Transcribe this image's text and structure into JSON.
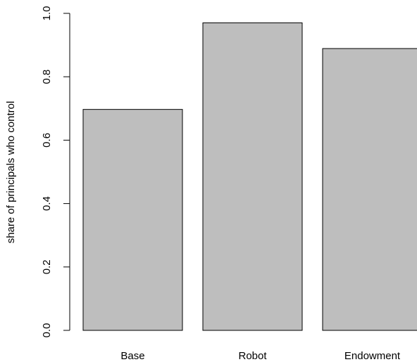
{
  "chart_data": {
    "type": "bar",
    "title": "",
    "xlabel": "",
    "ylabel": "share of principals who control",
    "categories": [
      "Base",
      "Robot",
      "Endowment"
    ],
    "values": [
      0.697,
      0.97,
      0.889
    ],
    "ylim": [
      0,
      1
    ],
    "yticks": [
      "0.0",
      "0.2",
      "0.4",
      "0.6",
      "0.8",
      "1.0"
    ],
    "grid": false,
    "legend": "none",
    "bar_color": "#bebebe",
    "bar_border_color": "#000000"
  }
}
